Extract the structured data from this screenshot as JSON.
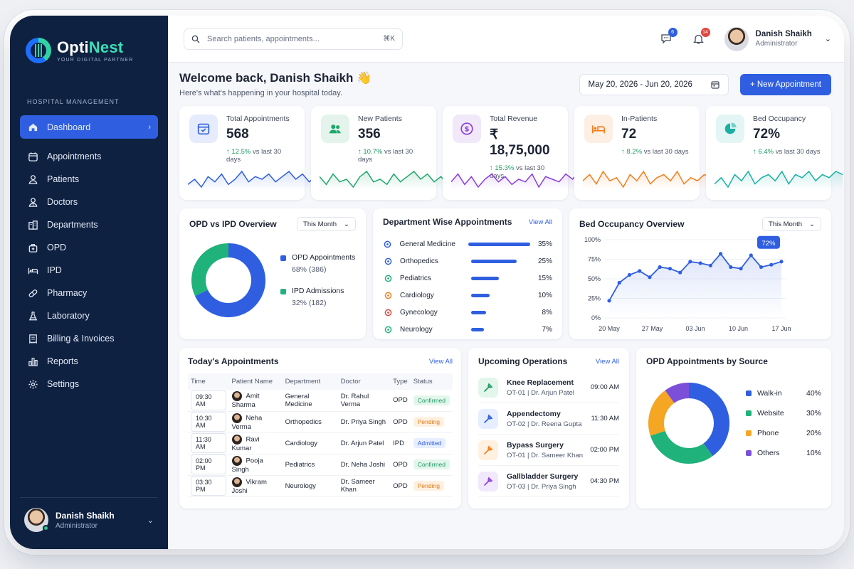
{
  "brand": {
    "name_a": "Opti",
    "name_b": "Nest",
    "tagline": "YOUR DIGITAL PARTNER"
  },
  "sidebar": {
    "section": "HOSPITAL MANAGEMENT",
    "items": [
      {
        "label": "Dashboard",
        "icon": "home-icon"
      },
      {
        "label": "Appointments",
        "icon": "calendar-icon"
      },
      {
        "label": "Patients",
        "icon": "user-icon"
      },
      {
        "label": "Doctors",
        "icon": "doctor-icon"
      },
      {
        "label": "Departments",
        "icon": "building-icon"
      },
      {
        "label": "OPD",
        "icon": "medkit-icon"
      },
      {
        "label": "IPD",
        "icon": "bed-icon"
      },
      {
        "label": "Pharmacy",
        "icon": "pill-icon"
      },
      {
        "label": "Laboratory",
        "icon": "flask-icon"
      },
      {
        "label": "Billing & Invoices",
        "icon": "receipt-icon"
      },
      {
        "label": "Reports",
        "icon": "bar-chart-icon"
      },
      {
        "label": "Settings",
        "icon": "gear-icon"
      }
    ],
    "user": {
      "name": "Danish Shaikh",
      "role": "Administrator"
    }
  },
  "topbar": {
    "search_placeholder": "Search patients, appointments...",
    "shortcut": "⌘K",
    "messages_count": "6",
    "notifications_count": "14",
    "user": {
      "name": "Danish Shaikh",
      "role": "Administrator"
    }
  },
  "welcome": {
    "title": "Welcome back, Danish Shaikh 👋",
    "subtitle": "Here's what's happening in your hospital today.",
    "date_range": "May 20, 2026 - Jun 20, 2026",
    "new_button": "+ New Appointment"
  },
  "stats": [
    {
      "label": "Total Appointments",
      "value": "568",
      "trend": "12.5%",
      "trend_text": "vs last 30 days",
      "color": "#2f5fe0",
      "spark": [
        14,
        12,
        15,
        11,
        13,
        10,
        14,
        12,
        9,
        13,
        11,
        12,
        10,
        13,
        11,
        9,
        12,
        10,
        13,
        11
      ]
    },
    {
      "label": "New Patients",
      "value": "356",
      "trend": "10.7%",
      "trend_text": "vs last 30 days",
      "color": "#1fa86b",
      "spark": [
        10,
        13,
        9,
        12,
        11,
        14,
        10,
        8,
        12,
        11,
        13,
        9,
        12,
        10,
        8,
        11,
        9,
        12,
        10,
        13
      ]
    },
    {
      "label": "Total Revenue",
      "value": "₹ 18,75,000",
      "trend": "15.3%",
      "trend_text": "vs last 30 days",
      "color": "#8b3fd9",
      "spark": [
        12,
        9,
        13,
        10,
        14,
        11,
        9,
        12,
        10,
        13,
        11,
        12,
        9,
        14,
        10,
        11,
        12,
        9,
        11,
        8
      ]
    },
    {
      "label": "In-Patients",
      "value": "72",
      "trend": "8.2%",
      "trend_text": "vs last 30 days",
      "color": "#f07f1f",
      "spark": [
        12,
        10,
        13,
        9,
        12,
        11,
        14,
        10,
        12,
        9,
        13,
        11,
        10,
        12,
        9,
        13,
        11,
        12,
        10,
        11
      ]
    },
    {
      "label": "Bed Occupancy",
      "value": "72%",
      "trend": "6.4%",
      "trend_text": "vs last 30 days",
      "color": "#17b0a2",
      "spark": [
        13,
        11,
        14,
        10,
        12,
        9,
        13,
        11,
        10,
        12,
        9,
        13,
        10,
        11,
        9,
        12,
        10,
        11,
        9,
        10
      ]
    }
  ],
  "opd_ipd": {
    "title": "OPD vs IPD Overview",
    "period": "This Month",
    "items": [
      {
        "label": "OPD Appointments",
        "detail": "68% (386)",
        "value": 68,
        "color": "#2f5fe0"
      },
      {
        "label": "IPD Admissions",
        "detail": "32% (182)",
        "value": 32,
        "color": "#1fb27a"
      }
    ]
  },
  "dept": {
    "title": "Department Wise Appointments",
    "link": "View All",
    "items": [
      {
        "label": "General Medicine",
        "pct": "35%",
        "value": 35,
        "icon": "stethoscope-icon",
        "icolor": "#2f5fe0"
      },
      {
        "label": "Orthopedics",
        "pct": "25%",
        "value": 25,
        "icon": "bone-icon",
        "icolor": "#2f5fe0"
      },
      {
        "label": "Pediatrics",
        "pct": "15%",
        "value": 15,
        "icon": "baby-icon",
        "icolor": "#1fb27a"
      },
      {
        "label": "Cardiology",
        "pct": "10%",
        "value": 10,
        "icon": "heart-icon",
        "icolor": "#f07f1f"
      },
      {
        "label": "Gynecology",
        "pct": "8%",
        "value": 8,
        "icon": "female-icon",
        "icolor": "#e0463e"
      },
      {
        "label": "Neurology",
        "pct": "7%",
        "value": 7,
        "icon": "brain-icon",
        "icolor": "#1fb27a"
      }
    ]
  },
  "occupancy": {
    "title": "Bed Occupancy Overview",
    "period": "This Month",
    "callout": "72%"
  },
  "chart_data": {
    "type": "area",
    "title": "Bed Occupancy Overview",
    "x": [
      "20 May",
      "22 May",
      "24 May",
      "25 May",
      "27 May",
      "29 May",
      "31 May",
      "1 Jun",
      "3 Jun",
      "5 Jun",
      "7 Jun",
      "9 Jun",
      "10 Jun",
      "12 Jun",
      "13 Jun",
      "15 Jun",
      "16 Jun",
      "17 Jun"
    ],
    "y": [
      22,
      45,
      55,
      60,
      52,
      65,
      63,
      58,
      72,
      70,
      67,
      82,
      65,
      63,
      80,
      65,
      68,
      72
    ],
    "x_ticks": [
      "20 May",
      "27 May",
      "03 Jun",
      "10 Jun",
      "17 Jun"
    ],
    "y_ticks": [
      "100%",
      "75%",
      "50%",
      "25%",
      "0%"
    ],
    "ylim": [
      0,
      100
    ],
    "color": "#2f5fe0"
  },
  "appointments": {
    "title": "Today's Appointments",
    "link": "View All",
    "columns": [
      "Time",
      "Patient Name",
      "Department",
      "Doctor",
      "Type",
      "Status"
    ],
    "rows": [
      {
        "time": "09:30 AM",
        "patient": "Amit Sharma",
        "dept": "General Medicine",
        "doctor": "Dr. Rahul Verma",
        "type": "OPD",
        "status": "Confirmed",
        "sbg": "#e3f6ec",
        "sfg": "#1f9d63"
      },
      {
        "time": "10:30 AM",
        "patient": "Neha Verma",
        "dept": "Orthopedics",
        "doctor": "Dr. Priya Singh",
        "type": "OPD",
        "status": "Pending",
        "sbg": "#fff0e0",
        "sfg": "#e07b15"
      },
      {
        "time": "11:30 AM",
        "patient": "Ravi Kumar",
        "dept": "Cardiology",
        "doctor": "Dr. Arjun Patel",
        "type": "IPD",
        "status": "Admitted",
        "sbg": "#e6eeff",
        "sfg": "#2f5fe0"
      },
      {
        "time": "02:00 PM",
        "patient": "Pooja Singh",
        "dept": "Pediatrics",
        "doctor": "Dr. Neha Joshi",
        "type": "OPD",
        "status": "Confirmed",
        "sbg": "#e3f6ec",
        "sfg": "#1f9d63"
      },
      {
        "time": "03:30 PM",
        "patient": "Vikram Joshi",
        "dept": "Neurology",
        "doctor": "Dr. Sameer Khan",
        "type": "OPD",
        "status": "Pending",
        "sbg": "#fff0e0",
        "sfg": "#e07b15"
      }
    ]
  },
  "operations": {
    "title": "Upcoming Operations",
    "link": "View All",
    "items": [
      {
        "name": "Knee Replacement",
        "sub": "OT-01 | Dr. Arjun Patel",
        "time": "09:00 AM",
        "bg": "#e3f6ec",
        "fg": "#1f9d63"
      },
      {
        "name": "Appendectomy",
        "sub": "OT-02 | Dr. Reena Gupta",
        "time": "11:30 AM",
        "bg": "#e6eeff",
        "fg": "#2f5fe0"
      },
      {
        "name": "Bypass Surgery",
        "sub": "OT-01 | Dr. Sameer Khan",
        "time": "02:00 PM",
        "bg": "#fff0e0",
        "fg": "#f07f1f"
      },
      {
        "name": "Gallbladder Surgery",
        "sub": "OT-03 | Dr. Priya Singh",
        "time": "04:30 PM",
        "bg": "#f1e8fd",
        "fg": "#8b3fd9"
      }
    ]
  },
  "source": {
    "title": "OPD Appointments by Source",
    "items": [
      {
        "label": "Walk-in",
        "pct": "40%",
        "value": 40,
        "color": "#2f5fe0"
      },
      {
        "label": "Website",
        "pct": "30%",
        "value": 30,
        "color": "#1fb27a"
      },
      {
        "label": "Phone",
        "pct": "20%",
        "value": 20,
        "color": "#f5a623"
      },
      {
        "label": "Others",
        "pct": "10%",
        "value": 10,
        "color": "#7c4fd8"
      }
    ]
  }
}
